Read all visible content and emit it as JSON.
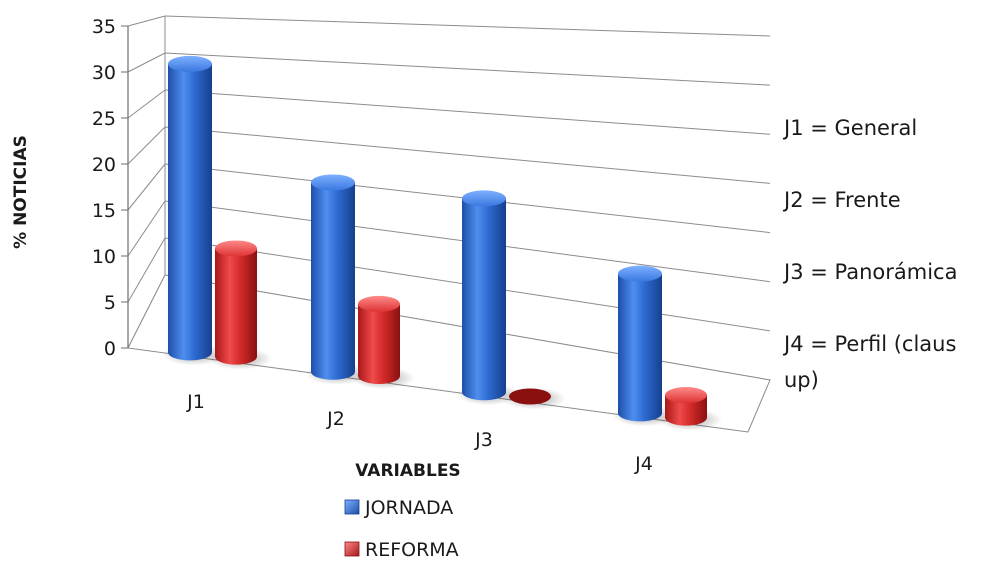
{
  "chart_data": {
    "type": "bar",
    "title": "",
    "xlabel": "VARIABLES",
    "ylabel": "% NOTICIAS",
    "ylim": [
      0,
      35
    ],
    "yticks": [
      0,
      5,
      10,
      15,
      20,
      25,
      30,
      35
    ],
    "categories": [
      "J1",
      "J2",
      "J3",
      "J4"
    ],
    "series": [
      {
        "name": "JORNADA",
        "values": [
          32,
          21,
          21.5,
          15.5
        ],
        "color": "#2e6bd1"
      },
      {
        "name": "REFORMA",
        "values": [
          12,
          8,
          0,
          2.5
        ],
        "color": "#d42a2a"
      }
    ],
    "grid": true,
    "legend": "bottom",
    "annotations": [
      "J1 = General",
      "J2  = Frente",
      "J3 = Panorámica",
      "J4 = Perfil (claus",
      "up)"
    ]
  }
}
